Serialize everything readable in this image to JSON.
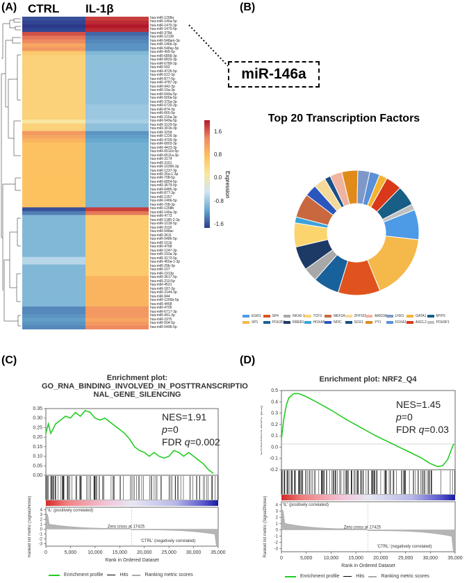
{
  "panels": {
    "a": "(A)",
    "b": "(B)",
    "c": "(C)",
    "d": "(D)"
  },
  "heatmap": {
    "col1": "CTRL",
    "col2": "IL-1β",
    "colorbar_label": "Expression",
    "colorbar_ticks": [
      "1.6",
      "0.8",
      "0.0",
      "-0.8",
      "-1.6"
    ],
    "rows": [
      "hsa-miR-1268a",
      "hsa-miR-146a-5p",
      "hsa-miR-1470-3p",
      "hsa-miR-1470-5p",
      "hsa-miR-378d",
      "hsa-miR-12136",
      "hsa-miR-548am-3p",
      "hsa-miR-146b-3p",
      "hsa-miR-548ay-5p",
      "hsa-miR-495-5p",
      "hsa-miR-6858-3p",
      "hsa-miR-6833-3p",
      "hsa-miR-6789-3p",
      "hsa-miR-592",
      "hsa-miR-4726-5p",
      "hsa-miR-512-3p",
      "hsa-miR-877-5p",
      "hsa-miR-4787-3p",
      "hsa-miR-942-3p",
      "hsa-miR-19a-3p",
      "hsa-miR-649a-5p",
      "hsa-miR-500a-5p",
      "hsa-miR-376a-3p",
      "hsa-miR-6720-3p",
      "hsa-miR-874-3p",
      "hsa-miR-665-5p",
      "hsa-miR-216a-3p",
      "hsa-miR-549a-5p",
      "hsa-miR-3129-5p",
      "hsa-miR-301b-3p",
      "hsa-miR-320d",
      "hsa-miR-1226-3p",
      "hsa-miR-4700-3p",
      "hsa-miR-6803-3p",
      "hsa-miR-4423-3p",
      "hsa-miR-6511b-5p",
      "hsa-miR-6511a-3p",
      "hsa-miR-3174",
      "hsa-miR-3161",
      "hsa-miR-10399-3p",
      "hsa-miR-1237-3p",
      "hsa-miR-26a-1-3p",
      "hsa-miR-708-5p",
      "hsa-miR-6854-5p",
      "hsa-miR-3679-5p",
      "hsa-miR-6485-3p",
      "hsa-miR-877-3p",
      "hsa-miR-1257",
      "hsa-miR-146b-5p",
      "hsa-miR-708-3p",
      "hsa-miR-1268b",
      "hsa-miR-146a-3p",
      "hsa-miR-4773",
      "hsa-miR-1185-2-3p",
      "hsa-miR-1018-5p",
      "hsa-miR-3118",
      "hsa-miR-548ac",
      "hsa-miR-3611",
      "hsa-miR-548h-5p",
      "hsa-miR-151b",
      "hsa-miR-4768",
      "hsa-miR-1247-3p",
      "hsa-miR-193a-3p",
      "hsa-miR-3173-5p",
      "hsa-miR-450a-1-3p",
      "hsa-miR-29b-3p",
      "hsa-miR-107",
      "hsa-miR-1913p",
      "hsa-miR-3617-5p",
      "hsa-miR-210-5p",
      "hsa-miR-4521",
      "hsa-miR-187-3p",
      "hsa-miR-3144-3p",
      "hsa-miR-944",
      "hsa-miR-1255b-5p",
      "hsa-miR-4458",
      "hsa-miR-4705",
      "hsa-miR-6717-3p",
      "hsa-miR-491-3p",
      "hsa-miR-1975",
      "hsa-miR-504-5p",
      "hsa-miR-5496-5p"
    ],
    "ctrl_values": [
      -1.6,
      -1.7,
      -1.8,
      -1.7,
      1.5,
      1.3,
      1.2,
      1.0,
      1.1,
      0.7,
      0.6,
      0.6,
      0.6,
      0.6,
      0.6,
      0.6,
      0.6,
      0.6,
      0.6,
      0.6,
      0.6,
      0.6,
      0.6,
      0.6,
      0.6,
      0.6,
      0.6,
      0.3,
      0.6,
      0.6,
      1.1,
      1.0,
      0.9,
      0.8,
      0.8,
      0.8,
      0.8,
      0.8,
      0.8,
      0.8,
      0.8,
      0.8,
      0.8,
      0.8,
      0.8,
      0.8,
      0.8,
      0.8,
      0.8,
      0.8,
      -1.6,
      -1.2,
      -0.6,
      -0.6,
      -0.6,
      -0.6,
      -0.6,
      -0.6,
      -0.6,
      -0.6,
      -0.6,
      -0.6,
      -0.6,
      -0.2,
      -0.2,
      -0.6,
      -0.6,
      -0.6,
      -0.6,
      -0.6,
      -0.6,
      -0.6,
      -0.6,
      -0.6,
      -0.6,
      -0.6,
      -1.1,
      -1.1,
      -1.0,
      -0.9,
      -1.0,
      -1.1
    ],
    "il1b_values": [
      1.6,
      1.7,
      1.8,
      1.7,
      -1.4,
      -1.2,
      -1.1,
      -1.0,
      -1.0,
      -0.6,
      -0.5,
      -0.5,
      -0.5,
      -0.5,
      -0.5,
      -0.5,
      -0.5,
      -0.5,
      -0.5,
      -0.5,
      -0.5,
      -0.5,
      -0.5,
      -0.4,
      -0.4,
      -0.4,
      -0.4,
      -0.3,
      -0.5,
      -0.5,
      -1.0,
      -0.9,
      -0.8,
      -0.7,
      -0.7,
      -0.7,
      -0.7,
      -0.7,
      -0.7,
      -0.7,
      -0.7,
      -0.7,
      -0.7,
      -0.7,
      -0.7,
      -0.7,
      -0.7,
      -0.7,
      -0.7,
      -0.7,
      1.6,
      1.3,
      0.7,
      0.7,
      0.7,
      0.7,
      0.7,
      0.7,
      0.7,
      0.7,
      0.7,
      0.7,
      0.7,
      0.7,
      0.7,
      0.7,
      0.7,
      0.7,
      0.9,
      0.9,
      0.9,
      0.9,
      0.9,
      0.9,
      0.9,
      0.9,
      1.1,
      1.1,
      1.1,
      1.0,
      1.1,
      1.2
    ]
  },
  "callout": {
    "label": "miR-146a"
  },
  "tf_chart": {
    "title": "Top 20 Transcription Factors",
    "slices": [
      {
        "name": "EGR1",
        "value": 7.5,
        "color": "#4d9ae6"
      },
      {
        "name": "SP1",
        "value": 16.5,
        "color": "#f5b84a"
      },
      {
        "name": "SP4",
        "value": 10.5,
        "color": "#e0531e"
      },
      {
        "name": "POU2F1",
        "value": 6.5,
        "color": "#19619a"
      },
      {
        "name": "NKX6-1",
        "value": 3.5,
        "color": "#a8a8a8"
      },
      {
        "name": "RREB1",
        "value": 6,
        "color": "#1d3a66"
      },
      {
        "name": "TCF3",
        "value": 6,
        "color": "#fcd46e"
      },
      {
        "name": "HOXA5",
        "value": 1.5,
        "color": "#3aa2d9"
      },
      {
        "name": "MEF2A",
        "value": 6,
        "color": "#c9683f"
      },
      {
        "name": "NFIC",
        "value": 3,
        "color": "#2b57bd"
      },
      {
        "name": "ZFP161",
        "value": 3,
        "color": "#f5d999"
      },
      {
        "name": "SOX1",
        "value": 1.5,
        "color": "#1a4f87"
      },
      {
        "name": "ARID3A",
        "value": 3,
        "color": "#f0b3a0"
      },
      {
        "name": "YY1",
        "value": 4,
        "color": "#e08a1a"
      },
      {
        "name": "LHX3",
        "value": 3,
        "color": "#7d98c9"
      },
      {
        "name": "FOXA1",
        "value": 2.5,
        "color": "#5b8fd6"
      },
      {
        "name": "GATA1",
        "value": 2,
        "color": "#f2b433"
      },
      {
        "name": "ASCL2",
        "value": 4,
        "color": "#d9381a"
      },
      {
        "name": "MYF5",
        "value": 5,
        "color": "#185e85"
      },
      {
        "name": "POU5F1",
        "value": 1.5,
        "color": "#c0c0c0"
      }
    ]
  },
  "gsea_c": {
    "title_line1": "Enrichment plot:",
    "title_line2": "GO_RNA_BINDING_INVOLVED_IN_POSTTRANSCRIPTIO",
    "title_line3": "NAL_GENE_SILENCING",
    "nes": "NES=1.91",
    "p": "p",
    "p_val": "=0",
    "fdr": "FDR ",
    "q": "q",
    "q_val": "=0.002",
    "y_label": "Enrichment score (ES)",
    "y_ticks": [
      "0.35",
      "0.30",
      "0.25",
      "0.20",
      "0.15",
      "0.10",
      "0.05",
      "0.00"
    ],
    "rank_y_label": "Ranked list metric (Signal2Noise)",
    "rank_y_ticks": [
      "4",
      "3",
      "2",
      "1",
      "0",
      "-1",
      "-2",
      "-3"
    ],
    "x_ticks": [
      "0",
      "5,000",
      "10,000",
      "15,000",
      "20,000",
      "25,000",
      "30,000",
      "35,000"
    ],
    "x_label": "Rank in Ordered Dataset",
    "pos_label": "'IL' (positively correlated)",
    "neg_label": "'CTRL' (negatively correlated)",
    "zero_cross": "Zero cross at 17425",
    "legend": [
      "Enrichment profile",
      "Hits",
      "Ranking metric scores"
    ],
    "es_curve": [
      [
        0,
        0.22
      ],
      [
        500,
        0.27
      ],
      [
        1000,
        0.22
      ],
      [
        2000,
        0.27
      ],
      [
        3000,
        0.29
      ],
      [
        4000,
        0.31
      ],
      [
        5000,
        0.3
      ],
      [
        6000,
        0.33
      ],
      [
        7000,
        0.31
      ],
      [
        8000,
        0.34
      ],
      [
        9000,
        0.33
      ],
      [
        10000,
        0.3
      ],
      [
        11000,
        0.29
      ],
      [
        12000,
        0.3
      ],
      [
        13000,
        0.28
      ],
      [
        14000,
        0.26
      ],
      [
        15000,
        0.24
      ],
      [
        16000,
        0.22
      ],
      [
        17000,
        0.19
      ],
      [
        18000,
        0.15
      ],
      [
        19000,
        0.13
      ],
      [
        20000,
        0.12
      ],
      [
        21000,
        0.1
      ],
      [
        22000,
        0.12
      ],
      [
        23000,
        0.1
      ],
      [
        24000,
        0.09
      ],
      [
        25000,
        0.1
      ],
      [
        26000,
        0.13
      ],
      [
        27000,
        0.12
      ],
      [
        28000,
        0.1
      ],
      [
        29000,
        0.12
      ],
      [
        30000,
        0.1
      ],
      [
        31000,
        0.08
      ],
      [
        32000,
        0.06
      ],
      [
        33000,
        0.03
      ],
      [
        34000,
        0.01
      ]
    ]
  },
  "gsea_d": {
    "title": "Enrichment plot: NRF2_Q4",
    "nes": "NES=1.45",
    "p": "p",
    "p_val": "=0",
    "fdr": "FDR ",
    "q": "q",
    "q_val": "=0.03",
    "y_label": "Enrichment score (ES)",
    "y_ticks": [
      "0.5",
      "0.4",
      "0.3",
      "0.2",
      "0.1",
      "0.0",
      "-0.1",
      "-0.2"
    ],
    "rank_y_label": "Ranked list metric (Signal2Noise)",
    "rank_y_ticks": [
      "4",
      "3",
      "2",
      "1",
      "0",
      "-1",
      "-2",
      "-3"
    ],
    "x_ticks": [
      "0",
      "5,000",
      "10,000",
      "15,000",
      "20,000",
      "25,000",
      "30,000",
      "35,000"
    ],
    "x_label": "Rank in Ordered Dataset",
    "pos_label": "'IL' (positively correlated)",
    "neg_label": "'CTRL' (negatively correlated)",
    "zero_cross": "Zero cross at 17425",
    "legend": [
      "Enrichment profile",
      "Hits",
      "Ranking metric scores"
    ],
    "es_curve": [
      [
        0,
        0.05
      ],
      [
        500,
        0.25
      ],
      [
        1000,
        0.38
      ],
      [
        1500,
        0.45
      ],
      [
        2500,
        0.49
      ],
      [
        3500,
        0.49
      ],
      [
        5000,
        0.46
      ],
      [
        7000,
        0.41
      ],
      [
        10000,
        0.33
      ],
      [
        13000,
        0.24
      ],
      [
        16000,
        0.16
      ],
      [
        19000,
        0.08
      ],
      [
        22000,
        0.01
      ],
      [
        25000,
        -0.06
      ],
      [
        28000,
        -0.13
      ],
      [
        30000,
        -0.19
      ],
      [
        31500,
        -0.22
      ],
      [
        32500,
        -0.21
      ],
      [
        33500,
        -0.15
      ],
      [
        34200,
        -0.06
      ],
      [
        34600,
        -0.01
      ],
      [
        34800,
        0.0
      ]
    ]
  }
}
